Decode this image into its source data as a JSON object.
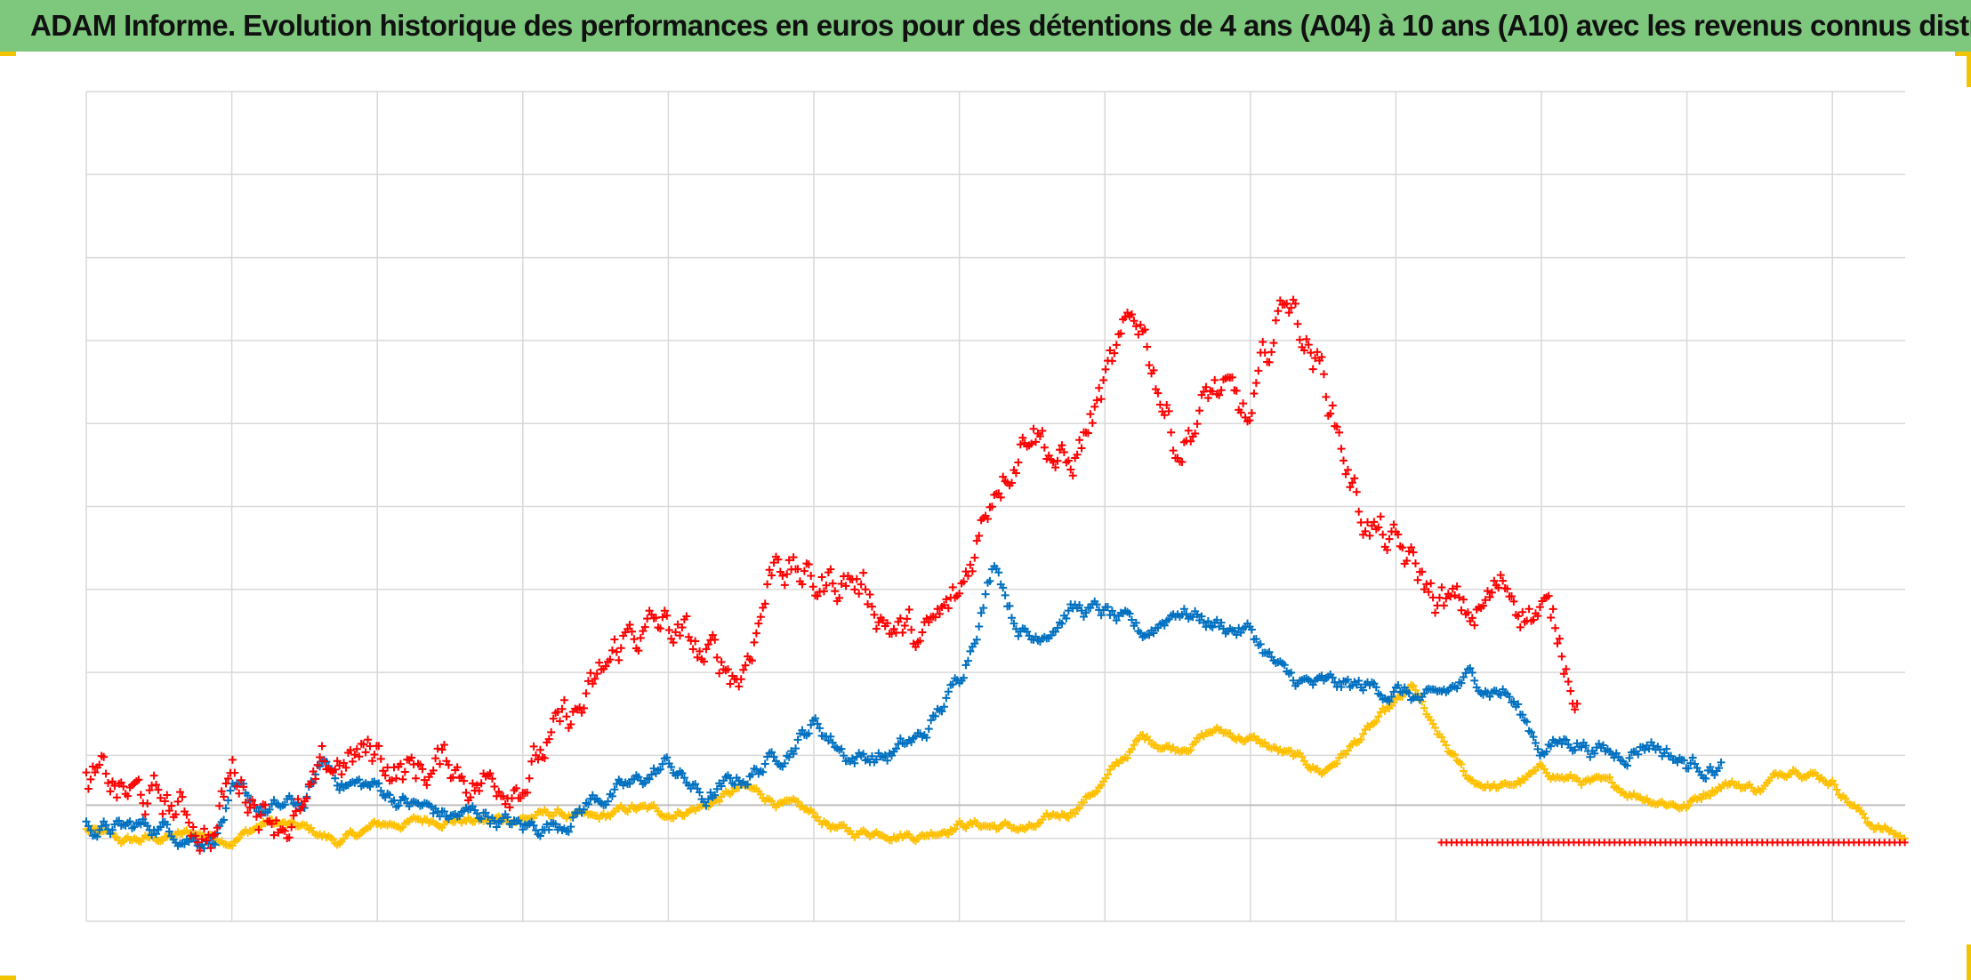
{
  "title": "ADAM Informe. Evolution historique des performances en euros pour des détentions de 4 ans (A04) à 10 ans (A10) avec les revenus connus distribués",
  "colors": {
    "title_bg": "#7ec87e",
    "grid": "#d9d9d9",
    "zero_line": "#bfbfbf",
    "corner_accent": "#f2c400"
  },
  "chart_data": {
    "type": "scatter",
    "marker": "plus",
    "title": "",
    "xlabel": "",
    "ylabel": "",
    "x_tick_labels_shown": false,
    "y_tick_labels_shown": false,
    "grid": true,
    "x_gridlines": 13,
    "y_gridlines": 10,
    "zero_line_index": 8.6,
    "ylim": [
      -1.4,
      8.6
    ],
    "xlim": [
      0,
      100
    ],
    "series": [
      {
        "color": "#ffc000",
        "points": [
          [
            0,
            -0.3
          ],
          [
            2,
            -0.45
          ],
          [
            4,
            -0.4
          ],
          [
            6,
            -0.35
          ],
          [
            8,
            -0.4
          ],
          [
            10,
            -0.2
          ],
          [
            12,
            -0.3
          ],
          [
            14,
            -0.45
          ],
          [
            16,
            -0.25
          ],
          [
            18,
            -0.2
          ],
          [
            20,
            -0.15
          ],
          [
            22,
            -0.2
          ],
          [
            24,
            -0.15
          ],
          [
            26,
            -0.1
          ],
          [
            28,
            -0.2
          ],
          [
            30,
            -0.05
          ],
          [
            32,
            -0.1
          ],
          [
            34,
            0.0
          ],
          [
            36,
            0.2
          ],
          [
            38,
            0.05
          ],
          [
            40,
            -0.15
          ],
          [
            42,
            -0.35
          ],
          [
            44,
            -0.3
          ],
          [
            46,
            -0.35
          ],
          [
            48,
            -0.2
          ],
          [
            50,
            -0.25
          ],
          [
            52,
            -0.3
          ],
          [
            54,
            -0.1
          ],
          [
            56,
            0.3
          ],
          [
            58,
            0.8
          ],
          [
            60,
            0.7
          ],
          [
            62,
            0.9
          ],
          [
            64,
            0.8
          ],
          [
            66,
            0.6
          ],
          [
            68,
            0.4
          ],
          [
            70,
            0.8
          ],
          [
            72,
            1.2
          ],
          [
            73,
            1.4
          ],
          [
            74,
            0.9
          ],
          [
            76,
            0.3
          ],
          [
            78,
            0.2
          ],
          [
            80,
            0.4
          ],
          [
            82,
            0.3
          ],
          [
            84,
            0.2
          ],
          [
            86,
            0.1
          ],
          [
            88,
            0.0
          ],
          [
            90,
            0.3
          ],
          [
            92,
            0.2
          ],
          [
            94,
            0.5
          ],
          [
            96,
            0.3
          ],
          [
            98,
            -0.2
          ],
          [
            100,
            -0.4
          ]
        ]
      },
      {
        "color": "#0070c0",
        "points": [
          [
            0,
            -0.25
          ],
          [
            2,
            -0.3
          ],
          [
            4,
            -0.25
          ],
          [
            6,
            -0.35
          ],
          [
            7,
            -0.35
          ],
          [
            8,
            0.1
          ],
          [
            10,
            -0.1
          ],
          [
            12,
            0.0
          ],
          [
            13,
            0.5
          ],
          [
            14,
            0.3
          ],
          [
            16,
            0.2
          ],
          [
            18,
            0.0
          ],
          [
            20,
            -0.15
          ],
          [
            22,
            -0.1
          ],
          [
            24,
            -0.3
          ],
          [
            26,
            -0.2
          ],
          [
            28,
            0.1
          ],
          [
            30,
            0.2
          ],
          [
            32,
            0.5
          ],
          [
            34,
            0.05
          ],
          [
            36,
            0.3
          ],
          [
            38,
            0.6
          ],
          [
            40,
            1.0
          ],
          [
            42,
            0.6
          ],
          [
            44,
            0.6
          ],
          [
            46,
            0.8
          ],
          [
            48,
            1.5
          ],
          [
            50,
            3.0
          ],
          [
            51,
            2.3
          ],
          [
            52,
            2.0
          ],
          [
            54,
            2.4
          ],
          [
            56,
            2.3
          ],
          [
            58,
            2.0
          ],
          [
            60,
            2.4
          ],
          [
            62,
            2.2
          ],
          [
            64,
            2.1
          ],
          [
            66,
            1.5
          ],
          [
            68,
            1.4
          ],
          [
            70,
            1.4
          ],
          [
            72,
            1.4
          ],
          [
            74,
            1.2
          ],
          [
            76,
            1.5
          ],
          [
            78,
            1.4
          ],
          [
            80,
            0.7
          ],
          [
            82,
            0.8
          ],
          [
            84,
            0.6
          ],
          [
            86,
            0.8
          ],
          [
            88,
            0.5
          ],
          [
            90,
            0.5
          ]
        ]
      },
      {
        "color": "#ff0000",
        "points": [
          [
            0,
            0.3
          ],
          [
            2,
            0.1
          ],
          [
            4,
            0.0
          ],
          [
            6,
            -0.2
          ],
          [
            7,
            -0.3
          ],
          [
            8,
            0.4
          ],
          [
            10,
            0.0
          ],
          [
            12,
            -0.1
          ],
          [
            14,
            0.5
          ],
          [
            16,
            0.6
          ],
          [
            18,
            0.4
          ],
          [
            20,
            0.5
          ],
          [
            22,
            0.3
          ],
          [
            24,
            0.5
          ],
          [
            26,
            0.8
          ],
          [
            28,
            1.3
          ],
          [
            30,
            2.1
          ],
          [
            32,
            2.1
          ],
          [
            34,
            1.7
          ],
          [
            36,
            1.6
          ],
          [
            38,
            3.1
          ],
          [
            40,
            2.6
          ],
          [
            42,
            2.8
          ],
          [
            44,
            2.3
          ],
          [
            46,
            1.9
          ],
          [
            48,
            2.4
          ],
          [
            50,
            4.0
          ],
          [
            52,
            4.8
          ],
          [
            54,
            4.0
          ],
          [
            56,
            5.0
          ],
          [
            58,
            5.8
          ],
          [
            60,
            4.4
          ],
          [
            62,
            5.0
          ],
          [
            64,
            4.5
          ],
          [
            66,
            6.2
          ],
          [
            68,
            5.2
          ],
          [
            70,
            3.6
          ],
          [
            72,
            3.0
          ],
          [
            74,
            2.5
          ],
          [
            76,
            2.2
          ],
          [
            78,
            2.6
          ],
          [
            80,
            2.4
          ],
          [
            82,
            1.5
          ]
        ]
      }
    ]
  }
}
